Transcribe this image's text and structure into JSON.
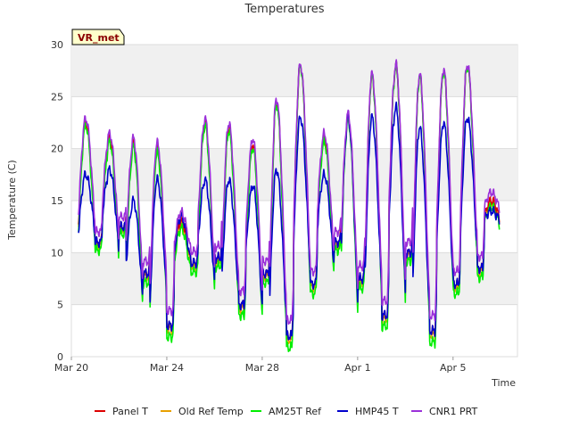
{
  "chart_data": {
    "type": "line",
    "title": "Temperatures",
    "xlabel": "Time",
    "ylabel": "Temperature (C)",
    "site_tag": "VR_met",
    "ylim": [
      0,
      30
    ],
    "yticks": [
      0,
      5,
      10,
      15,
      20,
      25,
      30
    ],
    "xlim_days": [
      0,
      18.7
    ],
    "xticks": [
      {
        "day": 0,
        "label": "Mar 20"
      },
      {
        "day": 4,
        "label": "Mar 24"
      },
      {
        "day": 8,
        "label": "Mar 28"
      },
      {
        "day": 12,
        "label": "Apr 1"
      },
      {
        "day": 16,
        "label": "Apr 5"
      }
    ],
    "series": [
      {
        "name": "Panel T",
        "color": "#dd0000",
        "offset": 0.0
      },
      {
        "name": "Old Ref Temp",
        "color": "#e8a000",
        "offset": -0.2
      },
      {
        "name": "AM25T Ref",
        "color": "#00ee00",
        "offset": -0.6
      },
      {
        "name": "HMP45 T",
        "color": "#0000cc",
        "offset": 0.0
      },
      {
        "name": "CNR1 PRT",
        "color": "#9b30d9",
        "offset": 0.8
      }
    ],
    "approx_daily": [
      {
        "day": 0.3,
        "min": 11.0,
        "max": 22.5,
        "hmp_max": 17.5
      },
      {
        "day": 1.3,
        "min": 12.5,
        "max": 21.0,
        "hmp_max": 18.0
      },
      {
        "day": 2.3,
        "min": 8.0,
        "max": 20.5,
        "hmp_max": 15.0
      },
      {
        "day": 3.3,
        "min": 3.0,
        "max": 20.0,
        "hmp_max": 17.0
      },
      {
        "day": 4.3,
        "min": 9.0,
        "max": 13.0,
        "hmp_max": 13.5
      },
      {
        "day": 5.3,
        "min": 9.5,
        "max": 22.5,
        "hmp_max": 17.0
      },
      {
        "day": 6.3,
        "min": 5.0,
        "max": 22.0,
        "hmp_max": 17.0
      },
      {
        "day": 7.3,
        "min": 8.0,
        "max": 20.5,
        "hmp_max": 16.5
      },
      {
        "day": 8.3,
        "min": 2.0,
        "max": 24.5,
        "hmp_max": 18.0
      },
      {
        "day": 9.3,
        "min": 7.0,
        "max": 28.0,
        "hmp_max": 23.0
      },
      {
        "day": 10.3,
        "min": 11.0,
        "max": 21.0,
        "hmp_max": 17.5
      },
      {
        "day": 11.3,
        "min": 7.5,
        "max": 23.0,
        "hmp_max": 23.0
      },
      {
        "day": 12.3,
        "min": 4.0,
        "max": 27.0,
        "hmp_max": 23.0
      },
      {
        "day": 13.3,
        "min": 10.0,
        "max": 28.0,
        "hmp_max": 24.0
      },
      {
        "day": 14.3,
        "min": 2.5,
        "max": 27.0,
        "hmp_max": 22.0
      },
      {
        "day": 15.3,
        "min": 7.0,
        "max": 27.5,
        "hmp_max": 22.5
      },
      {
        "day": 16.3,
        "min": 8.5,
        "max": 28.0,
        "hmp_max": 23.0
      },
      {
        "day": 17.3,
        "min": 13.0,
        "max": 15.0,
        "hmp_max": 14.0
      }
    ]
  }
}
